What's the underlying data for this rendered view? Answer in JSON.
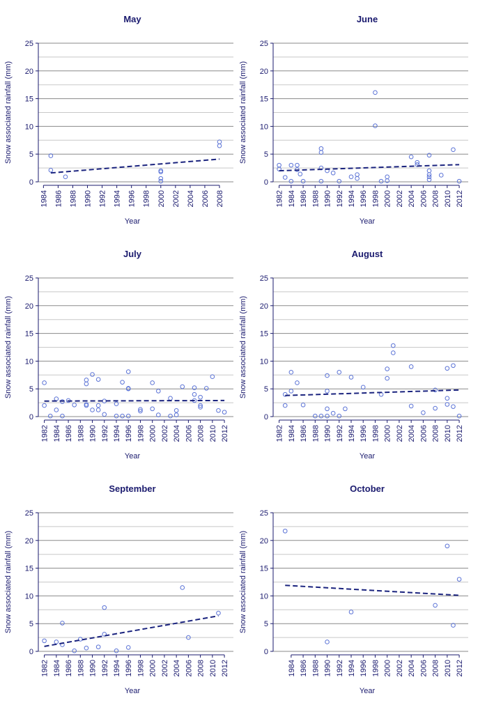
{
  "chart_data": [
    {
      "type": "scatter",
      "title": "May",
      "x_label": "Year",
      "y_label": "Snow associated rainfall (mm)",
      "x": [
        1985,
        1985,
        1987,
        2000,
        2000,
        2000,
        2000,
        2008,
        2008
      ],
      "y": [
        4.7,
        2.1,
        0.9,
        2.0,
        1.8,
        0.6,
        0.1,
        7.2,
        6.5
      ],
      "trend_x": [
        1985,
        2008
      ],
      "trend_y": [
        1.6,
        4.1
      ],
      "xlim": [
        1983.3,
        2009.9
      ],
      "xticks": [
        1984,
        1986,
        1988,
        1990,
        1992,
        1994,
        1996,
        1998,
        2000,
        2002,
        2004,
        2006,
        2008
      ],
      "ylim": [
        0,
        25
      ],
      "yticks": [
        0,
        5,
        10,
        15,
        20,
        25
      ],
      "grid": true,
      "grid_minor": [
        2.5,
        7.5,
        12.5,
        17.5,
        22.5
      ],
      "color": "#5b73d6",
      "trend_color": "#1a237e"
    },
    {
      "type": "scatter",
      "title": "June",
      "x_label": "Year",
      "y_label": "Snow associated rainfall (mm)",
      "x": [
        1982,
        1982,
        1983,
        1984,
        1984,
        1985,
        1985,
        1985.5,
        1986,
        1989,
        1989,
        1989,
        1989,
        1990,
        1991,
        1992,
        1994,
        1995,
        1995,
        1998,
        1998,
        1999,
        2000,
        2000,
        2004,
        2005,
        2005,
        2007,
        2007,
        2007,
        2007,
        2007,
        2009,
        2011,
        2012
      ],
      "y": [
        3.0,
        2.3,
        0.8,
        3.0,
        0.1,
        3.0,
        2.2,
        1.4,
        0.1,
        6.0,
        5.3,
        2.5,
        0.1,
        2.0,
        1.6,
        0.1,
        0.9,
        1.3,
        0.6,
        16.1,
        10.1,
        0.1,
        0.9,
        0.2,
        4.5,
        3.5,
        3.1,
        4.8,
        2.0,
        1.3,
        0.9,
        0.4,
        1.2,
        5.8,
        0.1
      ],
      "trend_x": [
        1982,
        2012
      ],
      "trend_y": [
        2.0,
        3.1
      ],
      "xlim": [
        1981,
        2013.5
      ],
      "xticks": [
        1982,
        1984,
        1986,
        1988,
        1990,
        1992,
        1994,
        1996,
        1998,
        2000,
        2002,
        2004,
        2006,
        2008,
        2010,
        2012
      ],
      "ylim": [
        0,
        25
      ],
      "yticks": [
        0,
        5,
        10,
        15,
        20,
        25
      ],
      "grid": true,
      "grid_minor": [
        2.5,
        7.5,
        12.5,
        17.5,
        22.5
      ],
      "color": "#5b73d6",
      "trend_color": "#1a237e"
    },
    {
      "type": "scatter",
      "title": "July",
      "x_label": "Year",
      "y_label": "Snow associated rainfall (mm)",
      "x": [
        1982,
        1982,
        1983,
        1984,
        1984,
        1985,
        1985,
        1986,
        1987,
        1989,
        1989,
        1989,
        1989,
        1990,
        1990,
        1991,
        1991,
        1991,
        1992,
        1992,
        1994,
        1994,
        1995,
        1995,
        1996,
        1996,
        1996,
        1996,
        1998,
        1998,
        2000,
        2000,
        2001,
        2001,
        2003,
        2003,
        2004,
        2004,
        2005,
        2007,
        2007,
        2007,
        2008,
        2008,
        2008,
        2009,
        2010,
        2011,
        2012
      ],
      "y": [
        6.1,
        2.0,
        0.1,
        3.2,
        1.2,
        0.1,
        2.7,
        2.9,
        2.1,
        6.6,
        5.9,
        2.2,
        2.0,
        7.6,
        1.2,
        6.7,
        2.0,
        1.2,
        0.4,
        2.8,
        2.3,
        0.1,
        6.2,
        0.1,
        8.1,
        5.1,
        5.0,
        0.1,
        1.3,
        1.0,
        6.1,
        1.4,
        4.6,
        0.3,
        3.3,
        0.1,
        1.1,
        0.3,
        5.4,
        5.2,
        4.0,
        2.9,
        3.5,
        2.0,
        1.7,
        5.1,
        7.2,
        1.1,
        0.8
      ],
      "trend_x": [
        1982,
        2012
      ],
      "trend_y": [
        2.8,
        2.9
      ],
      "xlim": [
        1981,
        2013.5
      ],
      "xticks": [
        1982,
        1984,
        1986,
        1988,
        1990,
        1992,
        1994,
        1996,
        1998,
        2000,
        2002,
        2004,
        2006,
        2008,
        2010,
        2012
      ],
      "ylim": [
        0,
        25
      ],
      "yticks": [
        0,
        5,
        10,
        15,
        20,
        25
      ],
      "grid": true,
      "grid_minor": [
        2.5,
        7.5,
        12.5,
        17.5,
        22.5
      ],
      "color": "#5b73d6",
      "trend_color": "#1a237e"
    },
    {
      "type": "scatter",
      "title": "August",
      "x_label": "Year",
      "y_label": "Snow associated rainfall (mm)",
      "x": [
        1983,
        1983,
        1984,
        1984,
        1985,
        1986,
        1988,
        1989,
        1990,
        1990,
        1990,
        1990,
        1991,
        1992,
        1992,
        1993,
        1994,
        1996,
        1999,
        2000,
        2000,
        2001,
        2001,
        2004,
        2004,
        2006,
        2008,
        2008,
        2010,
        2010,
        2010,
        2011,
        2011,
        2012
      ],
      "y": [
        4.0,
        2.0,
        8.0,
        4.6,
        6.1,
        2.1,
        0.1,
        0.1,
        7.4,
        4.6,
        1.4,
        0.1,
        0.6,
        8.0,
        0.1,
        1.4,
        7.1,
        5.3,
        4.0,
        8.6,
        6.9,
        12.8,
        11.5,
        9.0,
        1.9,
        0.7,
        4.8,
        1.5,
        8.7,
        3.3,
        2.2,
        9.2,
        1.8,
        0.1
      ],
      "trend_x": [
        1983,
        2012
      ],
      "trend_y": [
        3.8,
        4.8
      ],
      "xlim": [
        1981,
        2013.5
      ],
      "xticks": [
        1982,
        1984,
        1986,
        1988,
        1990,
        1992,
        1994,
        1996,
        1998,
        2000,
        2002,
        2004,
        2006,
        2008,
        2010,
        2012
      ],
      "ylim": [
        0,
        25
      ],
      "yticks": [
        0,
        5,
        10,
        15,
        20,
        25
      ],
      "grid": true,
      "grid_minor": [
        2.5,
        7.5,
        12.5,
        17.5,
        22.5
      ],
      "color": "#5b73d6",
      "trend_color": "#1a237e"
    },
    {
      "type": "scatter",
      "title": "September",
      "x_label": "Year",
      "y_label": "Snow associated rainfall (mm)",
      "x": [
        1982,
        1984,
        1985,
        1985,
        1987,
        1988,
        1989,
        1991,
        1992,
        1992,
        1994,
        1996,
        2005,
        2006,
        2011
      ],
      "y": [
        1.9,
        1.7,
        5.1,
        1.2,
        0.1,
        2.2,
        0.6,
        0.8,
        7.9,
        3.1,
        0.1,
        0.7,
        11.5,
        2.5,
        6.9
      ],
      "trend_x": [
        1982,
        2011
      ],
      "trend_y": [
        0.9,
        6.4
      ],
      "xlim": [
        1981,
        2013.5
      ],
      "xticks": [
        1982,
        1984,
        1986,
        1988,
        1990,
        1992,
        1994,
        1996,
        1998,
        2000,
        2002,
        2004,
        2006,
        2008,
        2010,
        2012
      ],
      "ylim": [
        0,
        25
      ],
      "yticks": [
        0,
        5,
        10,
        15,
        20,
        25
      ],
      "grid": true,
      "grid_minor": [
        2.5,
        7.5,
        12.5,
        17.5,
        22.5
      ],
      "color": "#5b73d6",
      "trend_color": "#1a237e"
    },
    {
      "type": "scatter",
      "title": "October",
      "x_label": "Year",
      "y_label": "Snow associated rainfall (mm)",
      "x": [
        1983,
        1990,
        1994,
        2008,
        2010,
        2011,
        2012
      ],
      "y": [
        21.7,
        1.7,
        7.1,
        8.3,
        19.0,
        4.7,
        13.0
      ],
      "trend_x": [
        1983,
        2012
      ],
      "trend_y": [
        11.9,
        10.1
      ],
      "xlim": [
        1981,
        2013.5
      ],
      "xticks": [
        1984,
        1986,
        1988,
        1990,
        1992,
        1994,
        1996,
        1998,
        2000,
        2002,
        2004,
        2006,
        2008,
        2010,
        2012
      ],
      "ylim": [
        0,
        25
      ],
      "yticks": [
        0,
        5,
        10,
        15,
        20,
        25
      ],
      "grid": true,
      "grid_minor": [
        2.5,
        7.5,
        12.5,
        17.5,
        22.5
      ],
      "color": "#5b73d6",
      "trend_color": "#1a237e"
    }
  ]
}
